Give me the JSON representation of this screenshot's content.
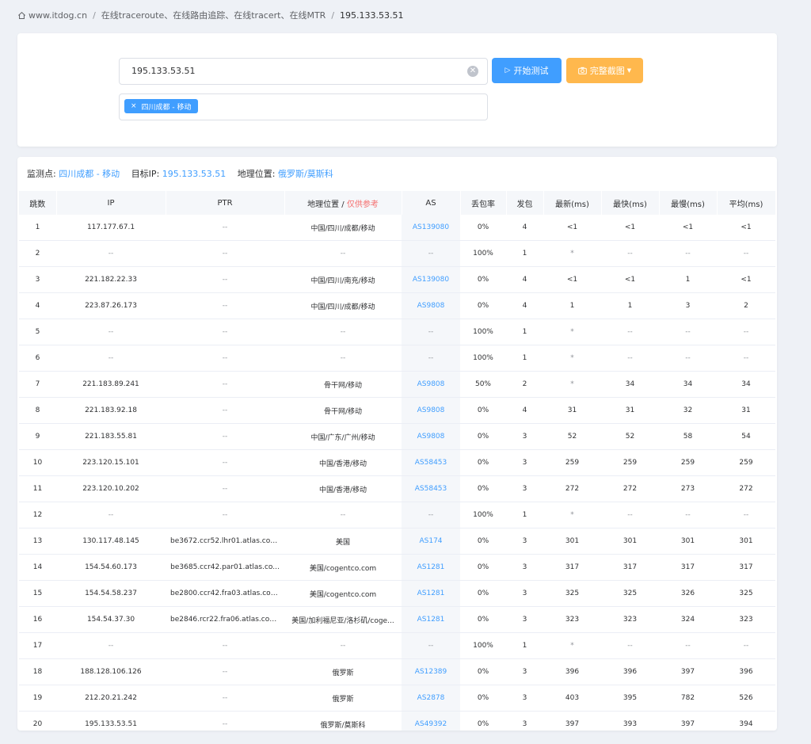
{
  "breadcrumb": {
    "home": "www.itdog.cn",
    "section": "在线traceroute、在线路由追踪、在线tracert、在线MTR",
    "current": "195.133.53.51"
  },
  "form": {
    "ip_value": "195.133.53.51",
    "start_label": "开始测试",
    "screenshot_label": "完整截图",
    "node_tag": "四川成都 - 移动"
  },
  "info": {
    "monitor_label": "监测点:",
    "monitor_value": "四川成都 - 移动",
    "target_label": "目标IP:",
    "target_value": "195.133.53.51",
    "geo_label": "地理位置:",
    "geo_value": "俄罗斯/莫斯科"
  },
  "table": {
    "headers": {
      "hop": "跳数",
      "ip": "IP",
      "ptr": "PTR",
      "geo": "地理位置 / ",
      "geo_note": "仅供参考",
      "as": "AS",
      "loss": "丢包率",
      "sent": "发包",
      "last": "最新(ms)",
      "best": "最快(ms)",
      "worst": "最慢(ms)",
      "avg": "平均(ms)"
    },
    "rows": [
      {
        "hop": "1",
        "ip": "117.177.67.1",
        "ptr": "--",
        "geo": "中国/四川/成都/移动",
        "as": "AS139080",
        "loss": "0%",
        "sent": "4",
        "last": "<1",
        "best": "<1",
        "worst": "<1",
        "avg": "<1"
      },
      {
        "hop": "2",
        "ip": "--",
        "ptr": "--",
        "geo": "--",
        "as": "--",
        "loss": "100%",
        "sent": "1",
        "last": "*",
        "best": "--",
        "worst": "--",
        "avg": "--"
      },
      {
        "hop": "3",
        "ip": "221.182.22.33",
        "ptr": "--",
        "geo": "中国/四川/南充/移动",
        "as": "AS139080",
        "loss": "0%",
        "sent": "4",
        "last": "<1",
        "best": "<1",
        "worst": "1",
        "avg": "<1"
      },
      {
        "hop": "4",
        "ip": "223.87.26.173",
        "ptr": "--",
        "geo": "中国/四川/成都/移动",
        "as": "AS9808",
        "loss": "0%",
        "sent": "4",
        "last": "1",
        "best": "1",
        "worst": "3",
        "avg": "2"
      },
      {
        "hop": "5",
        "ip": "--",
        "ptr": "--",
        "geo": "--",
        "as": "--",
        "loss": "100%",
        "sent": "1",
        "last": "*",
        "best": "--",
        "worst": "--",
        "avg": "--"
      },
      {
        "hop": "6",
        "ip": "--",
        "ptr": "--",
        "geo": "--",
        "as": "--",
        "loss": "100%",
        "sent": "1",
        "last": "*",
        "best": "--",
        "worst": "--",
        "avg": "--"
      },
      {
        "hop": "7",
        "ip": "221.183.89.241",
        "ptr": "--",
        "geo": "骨干网/移动",
        "as": "AS9808",
        "loss": "50%",
        "sent": "2",
        "last": "*",
        "best": "34",
        "worst": "34",
        "avg": "34"
      },
      {
        "hop": "8",
        "ip": "221.183.92.18",
        "ptr": "--",
        "geo": "骨干网/移动",
        "as": "AS9808",
        "loss": "0%",
        "sent": "4",
        "last": "31",
        "best": "31",
        "worst": "32",
        "avg": "31"
      },
      {
        "hop": "9",
        "ip": "221.183.55.81",
        "ptr": "--",
        "geo": "中国/广东/广州/移动",
        "as": "AS9808",
        "loss": "0%",
        "sent": "3",
        "last": "52",
        "best": "52",
        "worst": "58",
        "avg": "54"
      },
      {
        "hop": "10",
        "ip": "223.120.15.101",
        "ptr": "--",
        "geo": "中国/香港/移动",
        "as": "AS58453",
        "loss": "0%",
        "sent": "3",
        "last": "259",
        "best": "259",
        "worst": "259",
        "avg": "259"
      },
      {
        "hop": "11",
        "ip": "223.120.10.202",
        "ptr": "--",
        "geo": "中国/香港/移动",
        "as": "AS58453",
        "loss": "0%",
        "sent": "3",
        "last": "272",
        "best": "272",
        "worst": "273",
        "avg": "272"
      },
      {
        "hop": "12",
        "ip": "--",
        "ptr": "--",
        "geo": "--",
        "as": "--",
        "loss": "100%",
        "sent": "1",
        "last": "*",
        "best": "--",
        "worst": "--",
        "avg": "--"
      },
      {
        "hop": "13",
        "ip": "130.117.48.145",
        "ptr": "be3672.ccr52.lhr01.atlas.cog...",
        "geo": "美国",
        "as": "AS174",
        "loss": "0%",
        "sent": "3",
        "last": "301",
        "best": "301",
        "worst": "301",
        "avg": "301"
      },
      {
        "hop": "14",
        "ip": "154.54.60.173",
        "ptr": "be3685.ccr42.par01.atlas.co...",
        "geo": "美国/cogentco.com",
        "as": "AS1281",
        "loss": "0%",
        "sent": "3",
        "last": "317",
        "best": "317",
        "worst": "317",
        "avg": "317"
      },
      {
        "hop": "15",
        "ip": "154.54.58.237",
        "ptr": "be2800.ccr42.fra03.atlas.cog...",
        "geo": "美国/cogentco.com",
        "as": "AS1281",
        "loss": "0%",
        "sent": "3",
        "last": "325",
        "best": "325",
        "worst": "326",
        "avg": "325"
      },
      {
        "hop": "16",
        "ip": "154.54.37.30",
        "ptr": "be2846.rcr22.fra06.atlas.cog...",
        "geo": "美国/加利福尼亚/洛杉矶/coge...",
        "as": "AS1281",
        "loss": "0%",
        "sent": "3",
        "last": "323",
        "best": "323",
        "worst": "324",
        "avg": "323"
      },
      {
        "hop": "17",
        "ip": "--",
        "ptr": "--",
        "geo": "--",
        "as": "--",
        "loss": "100%",
        "sent": "1",
        "last": "*",
        "best": "--",
        "worst": "--",
        "avg": "--"
      },
      {
        "hop": "18",
        "ip": "188.128.106.126",
        "ptr": "--",
        "geo": "俄罗斯",
        "as": "AS12389",
        "loss": "0%",
        "sent": "3",
        "last": "396",
        "best": "396",
        "worst": "397",
        "avg": "396"
      },
      {
        "hop": "19",
        "ip": "212.20.21.242",
        "ptr": "--",
        "geo": "俄罗斯",
        "as": "AS2878",
        "loss": "0%",
        "sent": "3",
        "last": "403",
        "best": "395",
        "worst": "782",
        "avg": "526"
      },
      {
        "hop": "20",
        "ip": "195.133.53.51",
        "ptr": "--",
        "geo": "俄罗斯/莫斯科",
        "as": "AS49392",
        "loss": "0%",
        "sent": "3",
        "last": "397",
        "best": "393",
        "worst": "397",
        "avg": "394"
      }
    ]
  },
  "colors": {
    "primary": "#409eff",
    "warning_button": "#ffb84d",
    "note_red": "#f56c6c",
    "background": "#eef1f6"
  },
  "icons": {
    "home": "home-icon",
    "clear": "clear-icon",
    "start": "play-icon",
    "screenshot": "camera-icon",
    "dropdown": "caret-down-icon",
    "tag_close": "close-icon"
  }
}
